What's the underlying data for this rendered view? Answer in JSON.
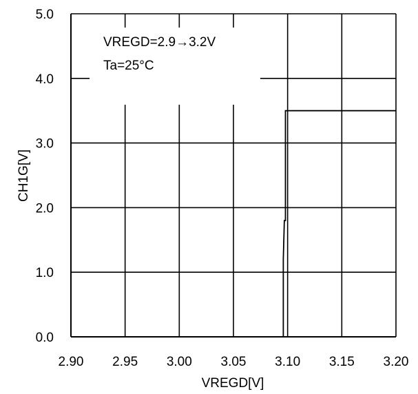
{
  "chart_data": {
    "type": "line",
    "title": "",
    "xlabel": "VREGD[V]",
    "ylabel": "CH1G[V]",
    "xlim": [
      2.9,
      3.2
    ],
    "ylim": [
      0.0,
      5.0
    ],
    "x_ticks": [
      "2.90",
      "2.95",
      "3.00",
      "3.05",
      "3.10",
      "3.15",
      "3.20"
    ],
    "y_ticks": [
      "0.0",
      "1.0",
      "2.0",
      "3.0",
      "4.0",
      "5.0"
    ],
    "grid": true,
    "annotations": [
      "VREGD=2.9→3.2V",
      "Ta=25°C"
    ],
    "series": [
      {
        "x": [
          3.096,
          3.096,
          3.097,
          3.098,
          3.098,
          3.2
        ],
        "y": [
          0.0,
          1.2,
          1.8,
          1.8,
          3.5,
          3.5
        ]
      }
    ]
  }
}
